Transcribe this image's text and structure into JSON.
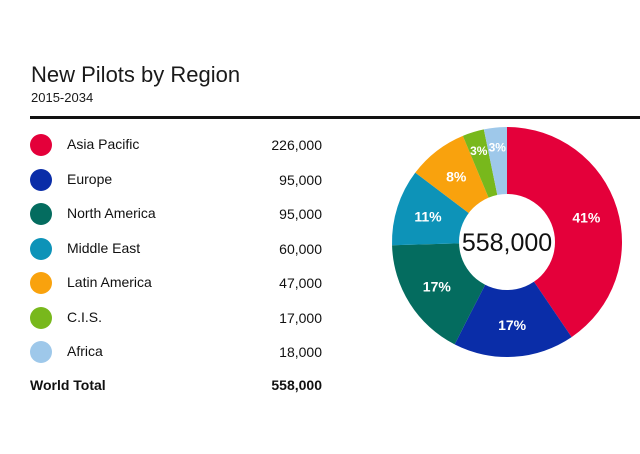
{
  "chart_data": {
    "type": "pie",
    "title": "New Pilots by Region",
    "subtitle": "2015-2034",
    "center_label": "558,000",
    "categories": [
      "Asia Pacific",
      "Europe",
      "North America",
      "Middle East",
      "Latin America",
      "C.I.S.",
      "Africa"
    ],
    "values": [
      226000,
      95000,
      95000,
      60000,
      47000,
      17000,
      18000
    ],
    "value_labels": [
      "226,000",
      "95,000",
      "95,000",
      "60,000",
      "47,000",
      "17,000",
      "18,000"
    ],
    "percent_labels": [
      "41%",
      "17%",
      "17%",
      "11%",
      "8%",
      "3%",
      "3%"
    ],
    "colors": [
      "#e4003a",
      "#0a2da8",
      "#046c5f",
      "#0d93b8",
      "#f9a20d",
      "#78b81c",
      "#9ec8ea"
    ],
    "total_label": "World Total",
    "total_value": "558,000"
  }
}
